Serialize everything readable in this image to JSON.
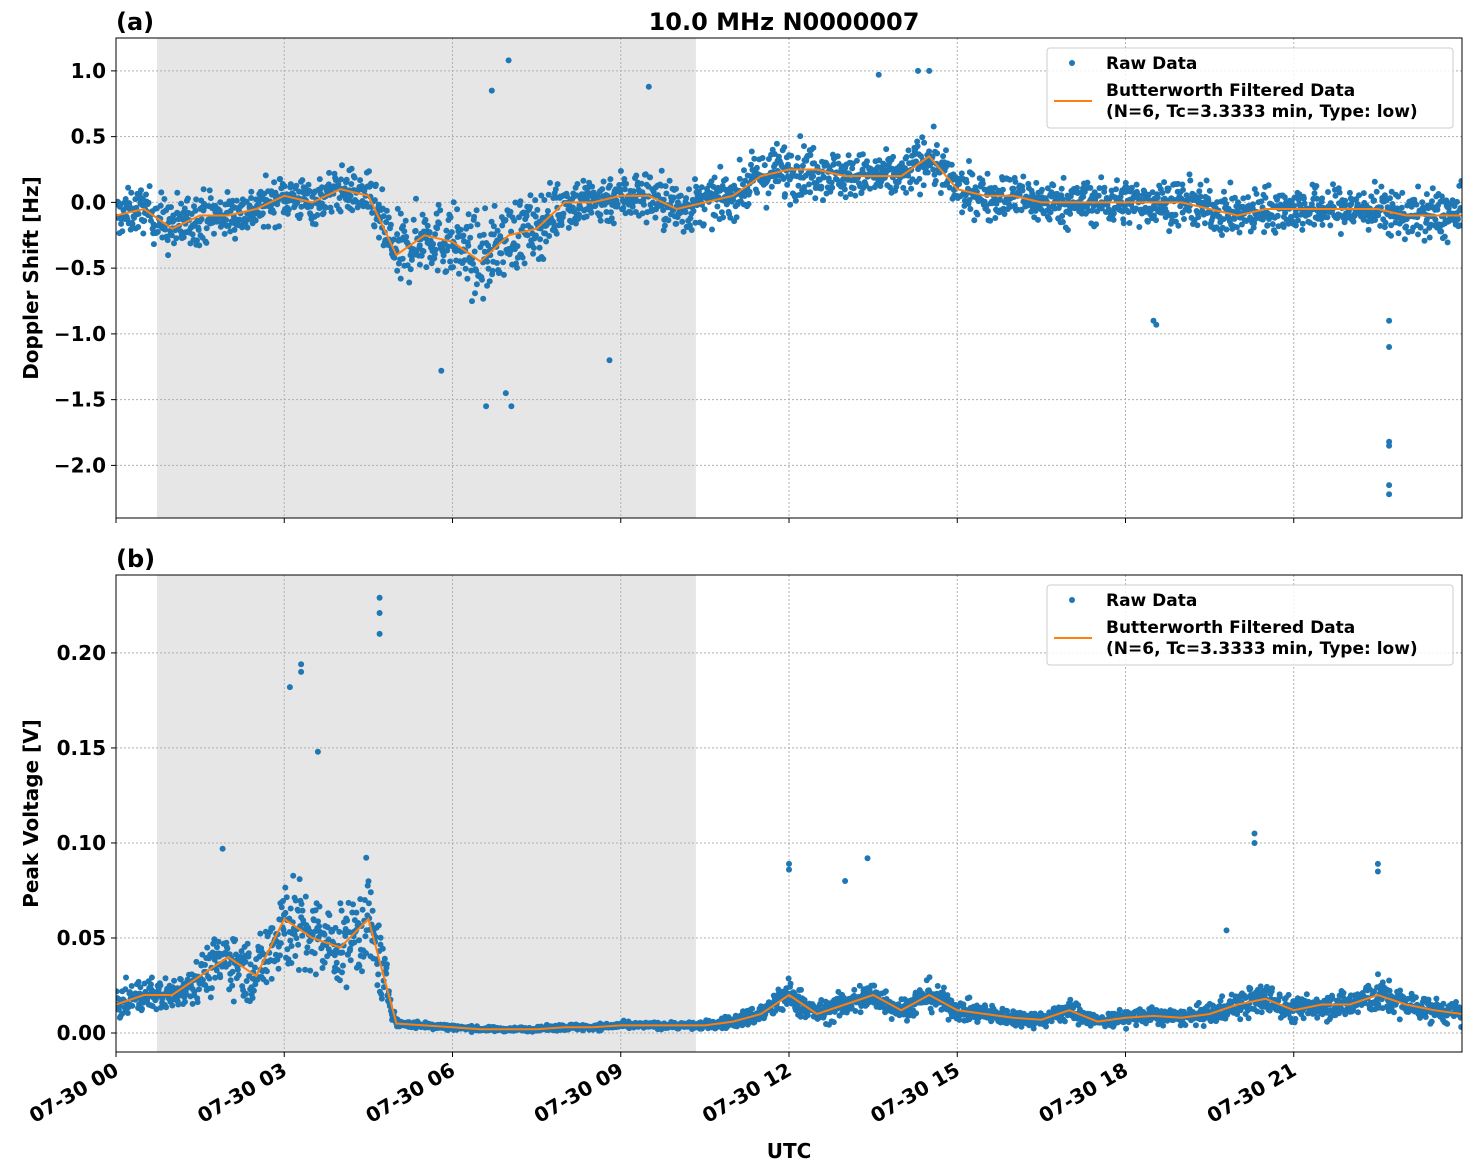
{
  "title": "10.0 MHz N0000007",
  "legend": {
    "raw": "Raw Data",
    "filtered_line1": "Butterworth Filtered Data",
    "filtered_line2": "(N=6, Tc=3.3333 min, Type: low)",
    "placement": "top-right"
  },
  "colors": {
    "raw": "#1f77b4",
    "filtered": "#ff7f0e",
    "shade": "#e6e6e6",
    "grid": "#b0b0b0"
  },
  "x_axis": {
    "label": "UTC",
    "range_hours": [
      0,
      24
    ],
    "tick_hours": [
      0,
      3,
      6,
      9,
      12,
      15,
      18,
      21
    ],
    "tick_labels": [
      "07-30 00",
      "07-30 03",
      "07-30 06",
      "07-30 09",
      "07-30 12",
      "07-30 15",
      "07-30 18",
      "07-30 21"
    ]
  },
  "shaded_interval_hours": [
    0.73,
    10.34
  ],
  "chart_data": [
    {
      "type": "scatter+line",
      "panel_label": "(a)",
      "ylabel": "Doppler Shift [Hz]",
      "ylim": [
        -2.4,
        1.25
      ],
      "yticks": [
        1.0,
        0.5,
        0.0,
        -0.5,
        -1.0,
        -1.5,
        -2.0
      ],
      "ytick_labels": [
        "1.0",
        "0.5",
        "0.0",
        "−0.5",
        "−1.0",
        "−1.5",
        "−2.0"
      ],
      "grid": true,
      "x_hours": [
        0,
        0.5,
        1,
        1.5,
        2,
        2.5,
        3,
        3.5,
        4,
        4.5,
        5,
        5.5,
        6,
        6.5,
        7,
        7.5,
        8,
        8.5,
        9,
        9.5,
        10,
        10.5,
        11,
        11.5,
        12,
        12.5,
        13,
        13.5,
        14,
        14.5,
        15,
        15.5,
        16,
        16.5,
        17,
        17.5,
        18,
        18.5,
        19,
        19.5,
        20,
        20.5,
        21,
        21.5,
        22,
        22.5,
        23,
        23.5,
        24
      ],
      "filtered": [
        -0.1,
        -0.05,
        -0.2,
        -0.1,
        -0.1,
        -0.05,
        0.05,
        0.0,
        0.1,
        0.05,
        -0.4,
        -0.25,
        -0.3,
        -0.45,
        -0.25,
        -0.2,
        0.0,
        0.0,
        0.05,
        0.05,
        -0.05,
        0.0,
        0.05,
        0.2,
        0.25,
        0.25,
        0.2,
        0.2,
        0.2,
        0.35,
        0.1,
        0.05,
        0.05,
        0.0,
        0.0,
        0.0,
        0.0,
        0.0,
        0.0,
        -0.05,
        -0.1,
        -0.05,
        -0.05,
        -0.05,
        -0.05,
        -0.05,
        -0.1,
        -0.1,
        -0.1
      ],
      "raw_spread": [
        0.3,
        0.3,
        0.4,
        0.35,
        0.3,
        0.3,
        0.3,
        0.3,
        0.3,
        0.3,
        0.5,
        0.45,
        0.5,
        0.55,
        0.5,
        0.45,
        0.35,
        0.35,
        0.35,
        0.35,
        0.4,
        0.3,
        0.3,
        0.35,
        0.4,
        0.35,
        0.3,
        0.3,
        0.3,
        0.35,
        0.3,
        0.3,
        0.3,
        0.3,
        0.3,
        0.3,
        0.3,
        0.3,
        0.3,
        0.3,
        0.3,
        0.3,
        0.3,
        0.3,
        0.3,
        0.3,
        0.3,
        0.35,
        0.35
      ],
      "raw_outliers": [
        [
          22.7,
          -2.22
        ],
        [
          22.7,
          -2.15
        ],
        [
          22.7,
          -1.85
        ],
        [
          22.7,
          -1.82
        ],
        [
          22.7,
          -1.1
        ],
        [
          22.7,
          -0.9
        ],
        [
          7.0,
          1.08
        ],
        [
          14.3,
          1.0
        ],
        [
          14.5,
          1.0
        ],
        [
          13.6,
          0.97
        ],
        [
          6.6,
          -1.55
        ],
        [
          7.05,
          -1.55
        ],
        [
          6.95,
          -1.45
        ],
        [
          8.8,
          -1.2
        ],
        [
          18.5,
          -0.9
        ],
        [
          18.55,
          -0.93
        ],
        [
          5.8,
          -1.28
        ],
        [
          6.7,
          0.85
        ],
        [
          9.5,
          0.88
        ]
      ]
    },
    {
      "type": "scatter+line",
      "panel_label": "(b)",
      "ylabel": "Peak Voltage [V]",
      "ylim": [
        -0.01,
        0.241
      ],
      "yticks": [
        0.0,
        0.05,
        0.1,
        0.15,
        0.2
      ],
      "ytick_labels": [
        "0.00",
        "0.05",
        "0.10",
        "0.15",
        "0.20"
      ],
      "grid": true,
      "x_hours": [
        0,
        0.5,
        1,
        1.5,
        2,
        2.5,
        3,
        3.5,
        4,
        4.5,
        5,
        5.5,
        6,
        6.5,
        7,
        7.5,
        8,
        8.5,
        9,
        9.5,
        10,
        10.5,
        11,
        11.5,
        12,
        12.5,
        13,
        13.5,
        14,
        14.5,
        15,
        15.5,
        16,
        16.5,
        17,
        17.5,
        18,
        18.5,
        19,
        19.5,
        20,
        20.5,
        21,
        21.5,
        22,
        22.5,
        23,
        23.5,
        24
      ],
      "filtered": [
        0.015,
        0.02,
        0.02,
        0.03,
        0.04,
        0.03,
        0.06,
        0.05,
        0.045,
        0.06,
        0.005,
        0.004,
        0.003,
        0.002,
        0.002,
        0.002,
        0.003,
        0.003,
        0.004,
        0.004,
        0.004,
        0.004,
        0.006,
        0.01,
        0.02,
        0.01,
        0.015,
        0.02,
        0.012,
        0.02,
        0.012,
        0.01,
        0.008,
        0.007,
        0.012,
        0.006,
        0.008,
        0.009,
        0.008,
        0.01,
        0.015,
        0.018,
        0.012,
        0.015,
        0.015,
        0.02,
        0.015,
        0.012,
        0.01
      ],
      "raw_spread": [
        0.015,
        0.015,
        0.015,
        0.02,
        0.03,
        0.025,
        0.05,
        0.04,
        0.035,
        0.05,
        0.004,
        0.003,
        0.003,
        0.002,
        0.002,
        0.002,
        0.003,
        0.003,
        0.003,
        0.003,
        0.003,
        0.004,
        0.006,
        0.01,
        0.015,
        0.01,
        0.013,
        0.015,
        0.01,
        0.014,
        0.01,
        0.009,
        0.008,
        0.007,
        0.01,
        0.006,
        0.008,
        0.008,
        0.007,
        0.01,
        0.013,
        0.015,
        0.011,
        0.013,
        0.013,
        0.017,
        0.013,
        0.011,
        0.01
      ],
      "raw_outliers": [
        [
          4.7,
          0.229
        ],
        [
          4.7,
          0.221
        ],
        [
          4.7,
          0.21
        ],
        [
          3.3,
          0.194
        ],
        [
          3.3,
          0.19
        ],
        [
          3.1,
          0.182
        ],
        [
          20.3,
          0.105
        ],
        [
          20.3,
          0.1
        ],
        [
          13.4,
          0.092
        ],
        [
          12.0,
          0.089
        ],
        [
          12.0,
          0.086
        ],
        [
          22.5,
          0.089
        ],
        [
          22.5,
          0.085
        ],
        [
          1.9,
          0.097
        ],
        [
          3.6,
          0.148
        ],
        [
          13.0,
          0.08
        ],
        [
          19.8,
          0.054
        ]
      ]
    }
  ]
}
